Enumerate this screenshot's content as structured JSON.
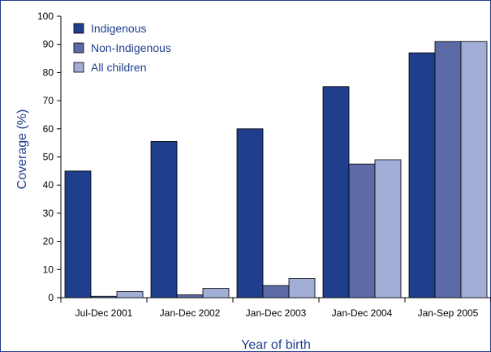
{
  "chart_data": {
    "type": "bar",
    "categories": [
      "Jul-Dec 2001",
      "Jan-Dec 2002",
      "Jan-Dec 2003",
      "Jan-Dec 2004",
      "Jan-Sep 2005"
    ],
    "series": [
      {
        "name": "Indigenous",
        "values": [
          45,
          55.5,
          60,
          75,
          87
        ],
        "color": "#1f3e8c"
      },
      {
        "name": "Non-Indigenous",
        "values": [
          0.5,
          1,
          4.3,
          47.5,
          91
        ],
        "color": "#5c6aa6"
      },
      {
        "name": "All children",
        "values": [
          2.2,
          3.3,
          6.8,
          49,
          91
        ],
        "color": "#a3aed8"
      }
    ],
    "xlabel": "Year of birth",
    "ylabel": "Coverage (%)",
    "ylim": [
      0,
      100
    ],
    "yticks": [
      0,
      10,
      20,
      30,
      40,
      50,
      60,
      70,
      80,
      90,
      100
    ],
    "grid": false,
    "legend": "top-left"
  }
}
